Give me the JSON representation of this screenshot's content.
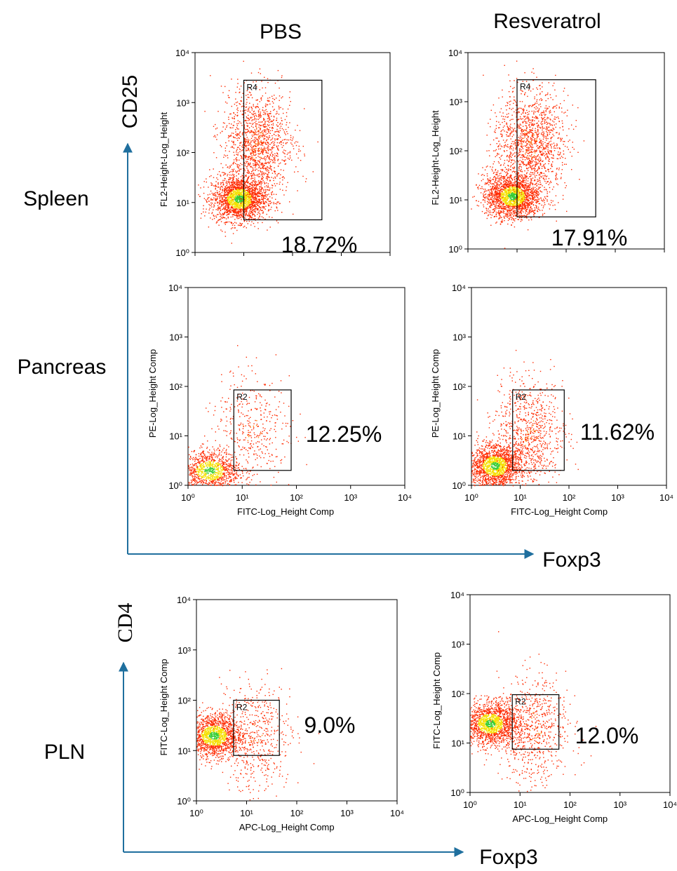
{
  "columns": [
    "PBS",
    "Resveratrol"
  ],
  "rows": [
    "Spleen",
    "Pancreas",
    "PLN"
  ],
  "axis_arrows": {
    "upper_y": "CD25",
    "upper_x": "Foxp3",
    "lower_y": "CD4",
    "lower_x": "Foxp3"
  },
  "colors": {
    "arrow": "#1f6f9e",
    "dots": "#ff2a00",
    "dense": "#f5e000",
    "core": "#33cc33"
  },
  "chart_data": [
    {
      "type": "scatter",
      "panel": "spleen-pbs",
      "xscale": "log",
      "yscale": "log",
      "xlim": [
        1,
        10000
      ],
      "ylim": [
        1,
        10000
      ],
      "xticklabels": [],
      "yticklabels": [
        "10⁰",
        "10¹",
        "10²",
        "10³",
        "10⁴"
      ],
      "xlabel": "",
      "ylabel": "FL2-Height-Log_Height",
      "gate": {
        "name": "R4",
        "x": [
          10,
          400
        ],
        "y": [
          4.5,
          2800
        ]
      },
      "percent": "18.72%",
      "clusters": [
        {
          "x": 8,
          "y": 12,
          "n": 2000
        },
        {
          "x": 18,
          "y": 150,
          "n": 1400
        }
      ]
    },
    {
      "type": "scatter",
      "panel": "spleen-resveratrol",
      "xscale": "log",
      "yscale": "log",
      "xlim": [
        1,
        10000
      ],
      "ylim": [
        1,
        10000
      ],
      "xticklabels": [],
      "yticklabels": [
        "10⁰",
        "10¹",
        "10²",
        "10³",
        "10⁴"
      ],
      "xlabel": "",
      "ylabel": "FL2-Height-Log_Height",
      "gate": {
        "name": "R4",
        "x": [
          10,
          400
        ],
        "y": [
          4.5,
          2800
        ]
      },
      "percent": "17.91%",
      "clusters": [
        {
          "x": 8,
          "y": 12,
          "n": 2000
        },
        {
          "x": 18,
          "y": 150,
          "n": 1400
        }
      ]
    },
    {
      "type": "scatter",
      "panel": "pancreas-pbs",
      "xscale": "log",
      "yscale": "log",
      "xlim": [
        1,
        10000
      ],
      "ylim": [
        1,
        10000
      ],
      "xticklabels": [
        "10⁰",
        "10¹",
        "10²",
        "10³",
        "10⁴"
      ],
      "yticklabels": [
        "10⁰",
        "10¹",
        "10²",
        "10³",
        "10⁴"
      ],
      "xlabel": "FITC-Log_Height Comp",
      "ylabel": "PE-Log_Height Comp",
      "gate": {
        "name": "R2",
        "x": [
          7,
          80
        ],
        "y": [
          2,
          85
        ]
      },
      "percent": "12.25%",
      "clusters": [
        {
          "x": 2.5,
          "y": 2,
          "n": 1100
        },
        {
          "x": 15,
          "y": 15,
          "n": 400
        }
      ]
    },
    {
      "type": "scatter",
      "panel": "pancreas-resveratrol",
      "xscale": "log",
      "yscale": "log",
      "xlim": [
        1,
        10000
      ],
      "ylim": [
        1,
        10000
      ],
      "xticklabels": [
        "10⁰",
        "10¹",
        "10²",
        "10³",
        "10⁴"
      ],
      "yticklabels": [
        "10⁰",
        "10¹",
        "10²",
        "10³",
        "10⁴"
      ],
      "xlabel": "FITC-Log_Height Comp",
      "ylabel": "PE-Log_Height Comp",
      "gate": {
        "name": "R2",
        "x": [
          7,
          80
        ],
        "y": [
          2,
          85
        ]
      },
      "percent": "11.62%",
      "clusters": [
        {
          "x": 3,
          "y": 2.5,
          "n": 1800
        },
        {
          "x": 15,
          "y": 12,
          "n": 800
        }
      ]
    },
    {
      "type": "scatter",
      "panel": "pln-pbs",
      "xscale": "log",
      "yscale": "log",
      "xlim": [
        1,
        10000
      ],
      "ylim": [
        1,
        10000
      ],
      "xticklabels": [
        "10⁰",
        "10¹",
        "10²",
        "10³",
        "10⁴"
      ],
      "yticklabels": [
        "10⁰",
        "10¹",
        "10²",
        "10³",
        "10⁴"
      ],
      "xlabel": "APC-Log_Height Comp",
      "ylabel": "FITC-Log_Height Comp",
      "gate": {
        "name": "R2",
        "x": [
          5.5,
          45
        ],
        "y": [
          8,
          100
        ]
      },
      "percent": "9.0%",
      "clusters": [
        {
          "x": 2.2,
          "y": 20,
          "n": 1600
        },
        {
          "x": 15,
          "y": 20,
          "n": 500
        }
      ]
    },
    {
      "type": "scatter",
      "panel": "pln-resveratrol",
      "xscale": "log",
      "yscale": "log",
      "xlim": [
        1,
        10000
      ],
      "ylim": [
        1,
        10000
      ],
      "xticklabels": [
        "10⁰",
        "10¹",
        "10²",
        "10³",
        "10⁴"
      ],
      "yticklabels": [
        "10⁰",
        "10¹",
        "10²",
        "10³",
        "10⁴"
      ],
      "xlabel": "APC-Log_Height Comp",
      "ylabel": "FITC-Log_Height Comp",
      "gate": {
        "name": "R2",
        "x": [
          7,
          60
        ],
        "y": [
          7.5,
          95
        ]
      },
      "percent": "12.0%",
      "clusters": [
        {
          "x": 2.5,
          "y": 25,
          "n": 1600
        },
        {
          "x": 18,
          "y": 20,
          "n": 700
        }
      ]
    }
  ]
}
